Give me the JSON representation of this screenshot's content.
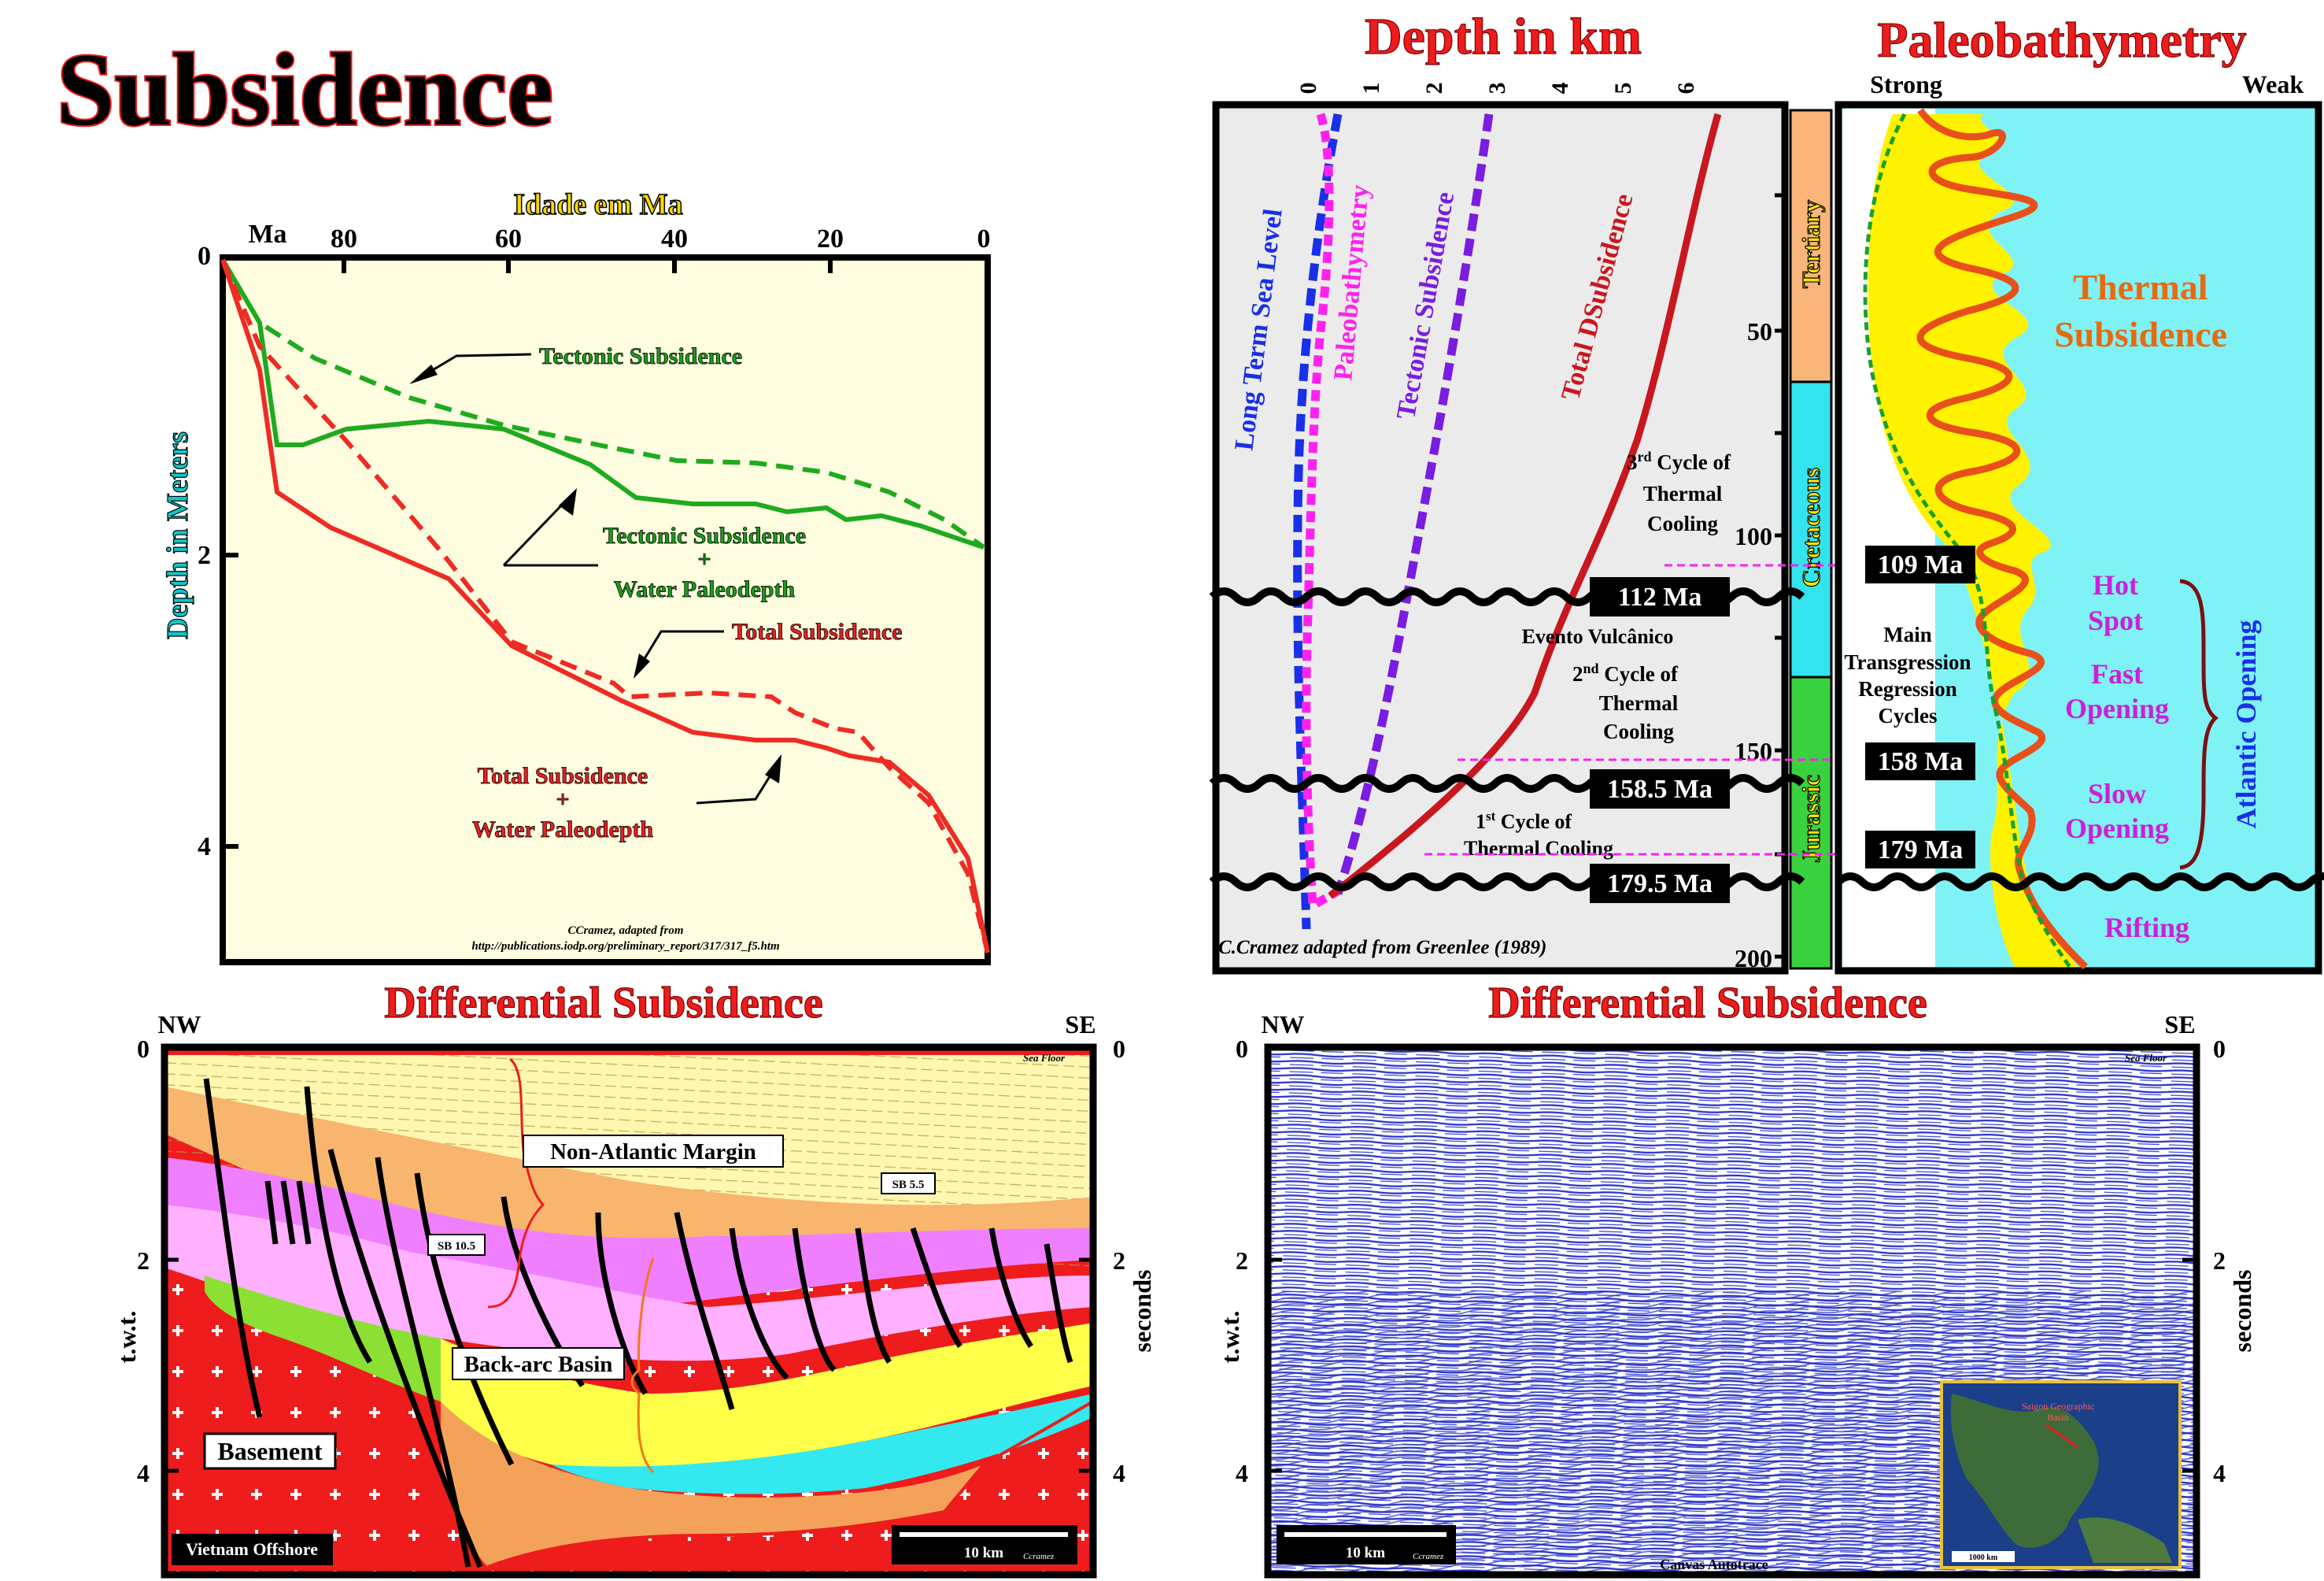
{
  "main_title": "Subsidence",
  "panel1": {
    "xaxis_title": "Idade em Ma",
    "x_unit": "Ma",
    "yaxis_title": "Depth in Meters",
    "x_ticks": [
      "80",
      "60",
      "40",
      "20",
      "0"
    ],
    "y_ticks": [
      "0",
      "2",
      "4"
    ],
    "labels": {
      "tectonic": "Tectonic Subsidence",
      "tectonic_water_1": "Tectonic Subsidence",
      "tectonic_water_2": "+",
      "tectonic_water_3": "Water Paleodepth",
      "total": "Total Subsidence",
      "total_water_1": "Total Subsidence",
      "total_water_2": "+",
      "total_water_3": "Water Paleodepth"
    },
    "credit_1": "CCramez, adapted from",
    "credit_2": "http://publications.iodp.org/preliminary_report/317/317_f5.htm",
    "colors": {
      "green": "#1faa1f",
      "red": "#ee2b24",
      "bg": "#fffde0"
    }
  },
  "panel2": {
    "title": "Depth in  km",
    "top_ticks": [
      "0",
      "1",
      "2",
      "3",
      "4",
      "5",
      "6"
    ],
    "age_ticks": [
      "50",
      "100",
      "150",
      "200"
    ],
    "curve_labels": {
      "sea_level": "Long Term Sea Level",
      "paleobathymetry": "Paleobathymetry",
      "tectonic": "Tectonic Subsidence",
      "total": "Total DSubsidence"
    },
    "cycles": {
      "c3_1": "3",
      "c3_sup": "rd",
      "c3_2": " Cycle of",
      "c3_3": "Thermal",
      "c3_4": "Cooling",
      "c2_1": "2",
      "c2_sup": "nd",
      "c2_2": " Cycle of",
      "c2_3": "Thermal",
      "c2_4": "Cooling",
      "c1_1": "1",
      "c1_sup": "st",
      "c1_2": "  Cycle of",
      "c1_3": "Thermal Cooling",
      "evento": "Evento Vulcânico"
    },
    "unconformities": [
      "112 Ma",
      "158.5 Ma",
      "179.5 Ma"
    ],
    "credit": "C.Cramez adapted from Greenlee (1989)",
    "periods": [
      "Tertiary",
      "Cretaceous",
      "Jurassic"
    ],
    "colors": {
      "blue": "#1a2fe8",
      "magenta": "#ff22ee",
      "purple": "#7a1de0",
      "darkred": "#c8171f",
      "tertiary": "#f9b57a",
      "cretaceous": "#33e3ee",
      "jurassic": "#3ad13f"
    }
  },
  "panel3": {
    "title": "Paleobathymetry",
    "strong": "Strong",
    "weak": "Weak",
    "thermal_1": "Thermal",
    "thermal_2": "Subsidence",
    "ages": [
      "109 Ma",
      "158 Ma",
      "179 Ma"
    ],
    "main_1": "Main",
    "main_2": "Transgression",
    "main_3": "Regression",
    "main_4": "Cycles",
    "hot_1": "Hot",
    "hot_2": "Spot",
    "fast_1": "Fast",
    "fast_2": "Opening",
    "slow_1": "Slow",
    "slow_2": "Opening",
    "atlantic": "Atlantic Opening",
    "rifting": "Rifting"
  },
  "panel4": {
    "title": "Differential Subsidence",
    "nw": "NW",
    "se": "SE",
    "left_axis": "t.w.t.",
    "right_axis": "seconds",
    "ticks": [
      "0",
      "2",
      "4"
    ],
    "sea_floor": "Sea Floor",
    "non_atlantic": "Non-Atlantic Margin",
    "sb55": "SB 5.5",
    "sb105": "SB 10.5",
    "backarc": "Back-arc Basin",
    "basement": "Basement",
    "location": "Vietnam Offshore",
    "scale": "10 km",
    "credit": "Ccramez"
  },
  "panel5": {
    "title": "Differential Subsidence",
    "nw": "NW",
    "se": "SE",
    "left_axis": "t.w.t.",
    "right_axis": "seconds",
    "ticks": [
      "0",
      "2",
      "4"
    ],
    "sea_floor": "Sea Floor",
    "scale": "10 km",
    "credit": "Ccramez",
    "autotrace": "Canvas Autotrace",
    "inset_label_1": "Saigon Geographic",
    "inset_label_2": "Basin",
    "inset_scale": "1000 km"
  }
}
